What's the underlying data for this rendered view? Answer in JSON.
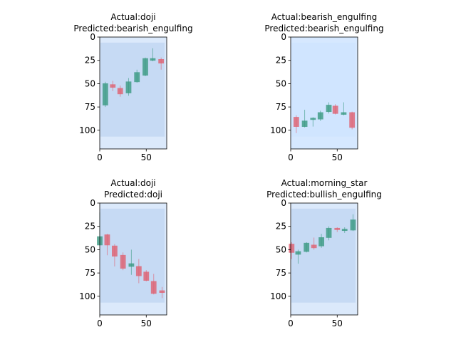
{
  "chart_data": [
    {
      "type": "image",
      "title_lines": [
        "Actual:doji",
        "Predicted:bearish_engulfing"
      ],
      "xlim": [
        0,
        72
      ],
      "ylim": [
        120,
        0
      ],
      "xticks": [
        0,
        50
      ],
      "yticks": [
        0,
        25,
        50,
        75,
        100
      ]
    },
    {
      "type": "image",
      "title_lines": [
        "Actual:bearish_engulfing",
        "Predicted:bearish_engulfing"
      ],
      "xlim": [
        0,
        72
      ],
      "ylim": [
        120,
        0
      ],
      "xticks": [
        0,
        50
      ],
      "yticks": [
        0,
        25,
        50,
        75,
        100
      ]
    },
    {
      "type": "image",
      "title_lines": [
        "Actual:doji",
        "Predicted:doji"
      ],
      "xlim": [
        0,
        72
      ],
      "ylim": [
        120,
        0
      ],
      "xticks": [
        0,
        50
      ],
      "yticks": [
        0,
        25,
        50,
        75,
        100
      ]
    },
    {
      "type": "image",
      "title_lines": [
        "Actual:morning_star",
        "Predicted:bullish_engulfing"
      ],
      "xlim": [
        0,
        72
      ],
      "ylim": [
        120,
        0
      ],
      "xticks": [
        0,
        50
      ],
      "yticks": [
        0,
        25,
        50,
        75,
        100
      ]
    }
  ]
}
